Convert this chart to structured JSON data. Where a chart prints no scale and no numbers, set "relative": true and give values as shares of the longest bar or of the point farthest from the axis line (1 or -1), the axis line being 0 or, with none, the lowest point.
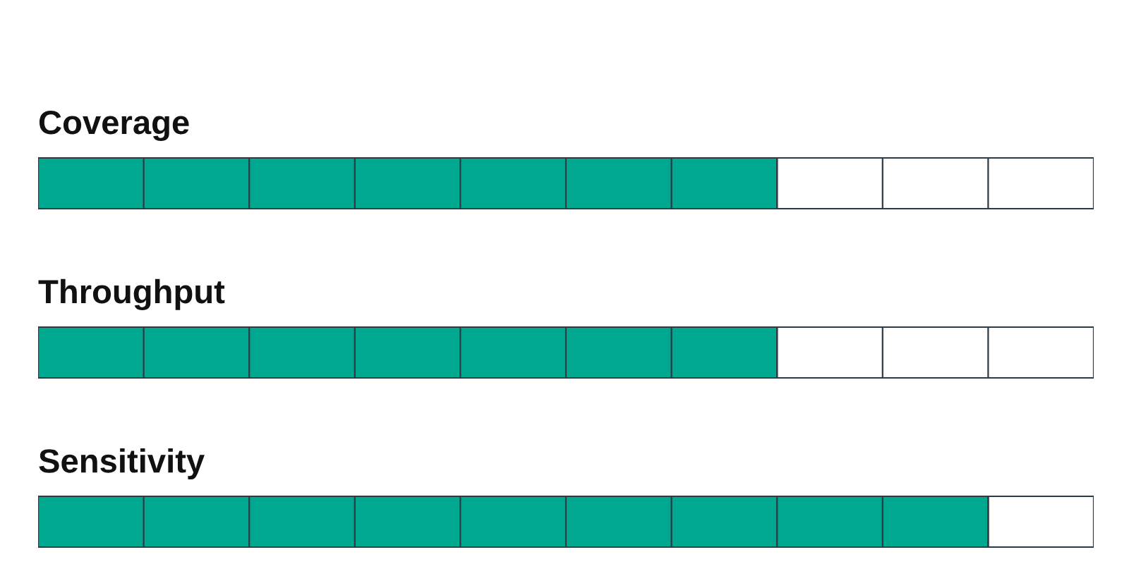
{
  "chart_data": {
    "type": "bar",
    "orientation": "horizontal",
    "stacked": true,
    "relative": true,
    "categories": [
      "Coverage",
      "Throughput",
      "Sensitivity"
    ],
    "series": [
      {
        "color": "#00a88f",
        "values": [
          0.7,
          0.7,
          0.9
        ]
      },
      {
        "color": "#ffffff",
        "values": [
          0.3,
          0.3,
          0.1
        ]
      }
    ]
  }
}
